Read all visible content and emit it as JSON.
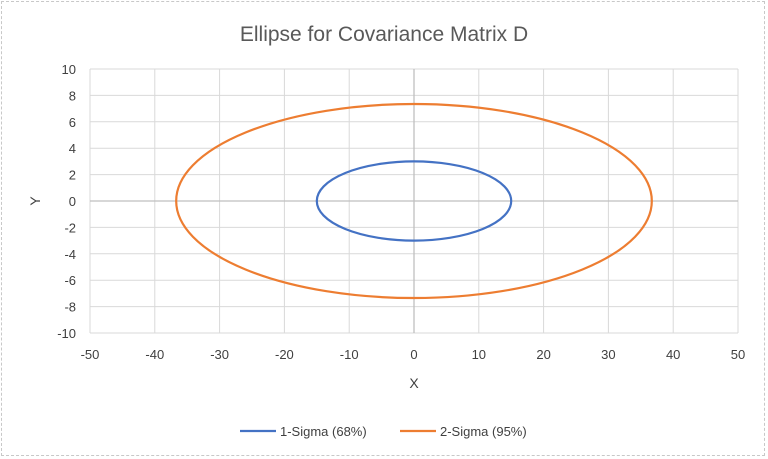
{
  "chart_data": {
    "type": "line",
    "title": "Ellipse for Covariance Matrix D",
    "xlabel": "X",
    "ylabel": "Y",
    "xlim": [
      -50,
      50
    ],
    "ylim": [
      -10,
      10
    ],
    "x_ticks": [
      -50,
      -40,
      -30,
      -20,
      -10,
      0,
      10,
      20,
      30,
      40,
      50
    ],
    "y_ticks": [
      -10,
      -8,
      -6,
      -4,
      -2,
      0,
      2,
      4,
      6,
      8,
      10
    ],
    "grid": true,
    "legend_position": "bottom",
    "series": [
      {
        "name": "1-Sigma (68%)",
        "shape": "ellipse",
        "center": [
          0,
          0
        ],
        "semi_axis_x": 15,
        "semi_axis_y": 3,
        "color": "#4472C4"
      },
      {
        "name": "2-Sigma (95%)",
        "shape": "ellipse",
        "center": [
          0,
          0
        ],
        "semi_axis_x": 36.7,
        "semi_axis_y": 7.35,
        "color": "#ED7D31"
      }
    ]
  }
}
